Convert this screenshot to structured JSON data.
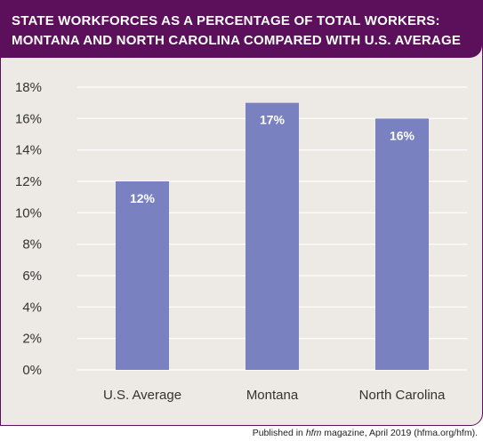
{
  "title_lines": [
    "STATE WORKFORCES AS A PERCENTAGE OF TOTAL WORKERS:",
    "MONTANA AND NORTH CAROLINA COMPARED WITH U.S. AVERAGE"
  ],
  "footer": {
    "prefix": "Published in ",
    "italic": "hfm",
    "suffix": " magazine, April 2019 (hfma.org/hfm)."
  },
  "colors": {
    "header": "#5c0f5a",
    "background": "#edeae5",
    "bar": "#7a81c0",
    "grid": "#ffffff"
  },
  "chart_data": {
    "type": "bar",
    "categories": [
      "U.S. Average",
      "Montana",
      "North Carolina"
    ],
    "values": [
      12,
      17,
      16
    ],
    "data_labels": [
      "12%",
      "17%",
      "16%"
    ],
    "ylim": [
      0,
      18
    ],
    "yticks": [
      0,
      2,
      4,
      6,
      8,
      10,
      12,
      14,
      16,
      18
    ],
    "ytick_labels": [
      "0%",
      "2%",
      "4%",
      "6%",
      "8%",
      "10%",
      "12%",
      "14%",
      "16%",
      "18%"
    ],
    "grid": true,
    "legend": "none",
    "xlabel": "",
    "ylabel": ""
  }
}
